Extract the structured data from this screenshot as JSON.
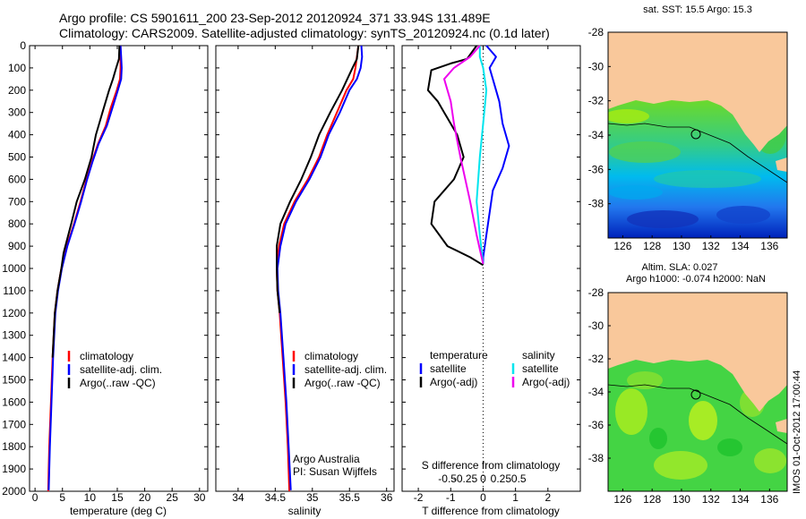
{
  "header": {
    "line1": "Argo profile: CS 5901611_200 23-Sep-2012 20120924_371 33.94S 131.489E",
    "line2": "Climatology: CARS2009. Satellite-adjusted climatology: synTS_20120924.nc (0.1d later)"
  },
  "colors": {
    "climatology": "#ff0000",
    "satellite": "#0000ff",
    "argo": "#000000",
    "sal_satellite": "#00e5ee",
    "sal_argo": "#ee00ee",
    "land": "#f9c89b"
  },
  "chart_data": [
    {
      "type": "line",
      "panel": "temperature",
      "xlabel": "temperature (deg C)",
      "ylabel": "",
      "xlim": [
        -1,
        31.5
      ],
      "ylim": [
        2000,
        0
      ],
      "xticks": [
        0,
        5,
        10,
        15,
        20,
        25,
        30
      ],
      "yticks": [
        0,
        100,
        200,
        300,
        400,
        500,
        600,
        700,
        800,
        900,
        1000,
        1100,
        1200,
        1300,
        1400,
        1500,
        1600,
        1700,
        1800,
        1900,
        2000
      ],
      "legend": [
        "climatology",
        "satellite-adj. clim.",
        "Argo(..raw -QC)"
      ],
      "legend_position": "lower-center",
      "series": [
        {
          "name": "climatology",
          "color": "#ff0000",
          "points": [
            [
              15.6,
              0
            ],
            [
              15.6,
              50
            ],
            [
              15.6,
              100
            ],
            [
              15.5,
              150
            ],
            [
              14.9,
              200
            ],
            [
              13.8,
              280
            ],
            [
              12.9,
              360
            ],
            [
              11.5,
              440
            ],
            [
              10.4,
              520
            ],
            [
              9.4,
              600
            ],
            [
              8.3,
              700
            ],
            [
              7.1,
              800
            ],
            [
              5.8,
              900
            ],
            [
              4.8,
              1000
            ],
            [
              4.1,
              1100
            ],
            [
              3.6,
              1200
            ],
            [
              3.2,
              1400
            ],
            [
              2.9,
              1600
            ],
            [
              2.6,
              1800
            ],
            [
              2.4,
              2000
            ]
          ]
        },
        {
          "name": "satellite-adj. clim.",
          "color": "#0000ff",
          "points": [
            [
              15.6,
              0
            ],
            [
              15.7,
              50
            ],
            [
              15.8,
              100
            ],
            [
              15.7,
              150
            ],
            [
              15.1,
              200
            ],
            [
              14.1,
              280
            ],
            [
              13.1,
              360
            ],
            [
              11.6,
              440
            ],
            [
              10.5,
              520
            ],
            [
              9.5,
              600
            ],
            [
              8.4,
              700
            ],
            [
              7.2,
              800
            ],
            [
              5.9,
              900
            ],
            [
              4.9,
              1000
            ],
            [
              4.2,
              1100
            ],
            [
              3.7,
              1200
            ],
            [
              3.3,
              1400
            ],
            [
              3.0,
              1600
            ],
            [
              2.7,
              1800
            ],
            [
              2.5,
              1995
            ]
          ]
        },
        {
          "name": "Argo(..raw -QC)",
          "color": "#000000",
          "points": [
            [
              15.4,
              0
            ],
            [
              15.3,
              60
            ],
            [
              14.8,
              100
            ],
            [
              14.2,
              150
            ],
            [
              13.5,
              200
            ],
            [
              12.3,
              300
            ],
            [
              11.1,
              400
            ],
            [
              10.3,
              500
            ],
            [
              9.1,
              600
            ],
            [
              7.6,
              700
            ],
            [
              6.6,
              800
            ],
            [
              5.2,
              930
            ],
            [
              4.8,
              1000
            ],
            [
              4.1,
              1100
            ],
            [
              3.6,
              1200
            ],
            [
              3.2,
              1400
            ]
          ]
        }
      ]
    },
    {
      "type": "line",
      "panel": "salinity",
      "xlabel": "salinity",
      "ylabel": "",
      "xlim": [
        33.7,
        36.1
      ],
      "ylim": [
        2000,
        0
      ],
      "xticks": [
        34,
        34.5,
        35,
        35.5,
        36
      ],
      "legend": [
        "climatology",
        "satellite-adj. clim.",
        "Argo(..raw -QC)"
      ],
      "legend_position": "lower-center",
      "annotation": [
        "Argo Australia",
        "PI: Susan Wijffels"
      ],
      "series": [
        {
          "name": "climatology",
          "color": "#ff0000",
          "points": [
            [
              35.62,
              0
            ],
            [
              35.6,
              50
            ],
            [
              35.58,
              100
            ],
            [
              35.55,
              150
            ],
            [
              35.46,
              200
            ],
            [
              35.33,
              300
            ],
            [
              35.2,
              400
            ],
            [
              35.09,
              500
            ],
            [
              34.94,
              600
            ],
            [
              34.76,
              700
            ],
            [
              34.62,
              800
            ],
            [
              34.55,
              900
            ],
            [
              34.52,
              1000
            ],
            [
              34.53,
              1100
            ],
            [
              34.56,
              1200
            ],
            [
              34.6,
              1400
            ],
            [
              34.64,
              1600
            ],
            [
              34.67,
              1800
            ],
            [
              34.69,
              2000
            ]
          ]
        },
        {
          "name": "satellite-adj. clim.",
          "color": "#0000ff",
          "points": [
            [
              35.66,
              0
            ],
            [
              35.67,
              50
            ],
            [
              35.65,
              100
            ],
            [
              35.6,
              150
            ],
            [
              35.5,
              200
            ],
            [
              35.37,
              300
            ],
            [
              35.22,
              400
            ],
            [
              35.11,
              500
            ],
            [
              34.96,
              600
            ],
            [
              34.78,
              700
            ],
            [
              34.64,
              800
            ],
            [
              34.57,
              900
            ],
            [
              34.53,
              1000
            ],
            [
              34.54,
              1100
            ],
            [
              34.57,
              1200
            ],
            [
              34.61,
              1400
            ],
            [
              34.65,
              1600
            ],
            [
              34.68,
              1800
            ],
            [
              34.71,
              1995
            ]
          ]
        },
        {
          "name": "Argo(..raw -QC)",
          "color": "#000000",
          "points": [
            [
              35.62,
              0
            ],
            [
              35.6,
              60
            ],
            [
              35.54,
              100
            ],
            [
              35.47,
              150
            ],
            [
              35.4,
              200
            ],
            [
              35.24,
              300
            ],
            [
              35.09,
              400
            ],
            [
              34.98,
              500
            ],
            [
              34.85,
              600
            ],
            [
              34.7,
              700
            ],
            [
              34.57,
              800
            ],
            [
              34.52,
              900
            ],
            [
              34.52,
              1000
            ],
            [
              34.53,
              1100
            ],
            [
              34.56,
              1200
            ]
          ]
        }
      ]
    },
    {
      "type": "line",
      "panel": "difference",
      "xlabel": "T difference from climatology",
      "xlabel_top": "S difference from climatology",
      "ylabel": "",
      "xlim": [
        -2.5,
        3.0
      ],
      "ylim": [
        2000,
        0
      ],
      "xticks_T": [
        -2,
        -1,
        0,
        1,
        2
      ],
      "xticks_S": [
        "-0.5",
        "-0.25",
        "0",
        "0.25",
        "0.5"
      ],
      "xticks_S_values": [
        -0.5,
        -0.25,
        0,
        0.25,
        0.5
      ],
      "legend": {
        "col1_title": "temperature",
        "col2_title": "salinity",
        "col1": [
          "satellite",
          "Argo(-adj)"
        ],
        "col2": [
          "satellite",
          "Argo(-adj)"
        ]
      },
      "series": [
        {
          "name": "temperature satellite",
          "color": "#0000ff",
          "points": [
            [
              0.1,
              0
            ],
            [
              0.4,
              50
            ],
            [
              0.2,
              100
            ],
            [
              0.3,
              150
            ],
            [
              0.5,
              250
            ],
            [
              0.6,
              350
            ],
            [
              0.8,
              450
            ],
            [
              0.6,
              550
            ],
            [
              0.3,
              650
            ],
            [
              0.2,
              750
            ],
            [
              0.1,
              850
            ],
            [
              0.0,
              950
            ],
            [
              0.0,
              980
            ]
          ]
        },
        {
          "name": "temperature Argo(-adj)",
          "color": "#000000",
          "points": [
            [
              -0.2,
              0
            ],
            [
              -0.5,
              60
            ],
            [
              -1.0,
              80
            ],
            [
              -1.6,
              110
            ],
            [
              -1.7,
              200
            ],
            [
              -1.4,
              250
            ],
            [
              -1.2,
              300
            ],
            [
              -0.8,
              400
            ],
            [
              -0.6,
              500
            ],
            [
              -0.9,
              600
            ],
            [
              -1.5,
              700
            ],
            [
              -1.6,
              800
            ],
            [
              -1.1,
              900
            ],
            [
              -0.4,
              950
            ],
            [
              0.0,
              985
            ]
          ]
        },
        {
          "name": "salinity satellite",
          "color": "#00e5ee",
          "points": [
            [
              -0.1,
              0
            ],
            [
              -0.1,
              50
            ],
            [
              0.0,
              100
            ],
            [
              0.1,
              200
            ],
            [
              0.0,
              350
            ],
            [
              -0.1,
              500
            ],
            [
              -0.2,
              700
            ],
            [
              -0.1,
              850
            ],
            [
              0.0,
              980
            ]
          ]
        },
        {
          "name": "salinity Argo(-adj)",
          "color": "#ee00ee",
          "points": [
            [
              -0.1,
              0
            ],
            [
              -0.4,
              50
            ],
            [
              -0.9,
              100
            ],
            [
              -1.2,
              150
            ],
            [
              -1.0,
              250
            ],
            [
              -0.9,
              350
            ],
            [
              -0.7,
              500
            ],
            [
              -0.4,
              700
            ],
            [
              -0.2,
              850
            ],
            [
              0.0,
              980
            ]
          ]
        }
      ]
    },
    {
      "type": "heatmap",
      "panel": "map_sst",
      "title": "sat. SST: 15.5 Argo: 15.3",
      "xlim": [
        125,
        137.2
      ],
      "ylim": [
        -40,
        -28
      ],
      "xticks": [
        126,
        128,
        130,
        132,
        134,
        136
      ],
      "yticks": [
        -28,
        -30,
        -32,
        -34,
        -36,
        -38
      ],
      "marker": [
        131.5,
        -34.0
      ]
    },
    {
      "type": "heatmap",
      "panel": "map_sla",
      "title": "Altim. SLA: 0.027",
      "subtitle": "Argo h1000: -0.074 h2000: NaN",
      "xlim": [
        125,
        137.2
      ],
      "ylim": [
        -40,
        -28
      ],
      "xticks": [
        126,
        128,
        130,
        132,
        134,
        136
      ],
      "yticks": [
        -28,
        -30,
        -32,
        -34,
        -36,
        -38
      ],
      "marker": [
        131.5,
        -34.0
      ]
    }
  ],
  "footer": {
    "stamp": "IMOS 01-Oct-2012 17:00:44"
  }
}
